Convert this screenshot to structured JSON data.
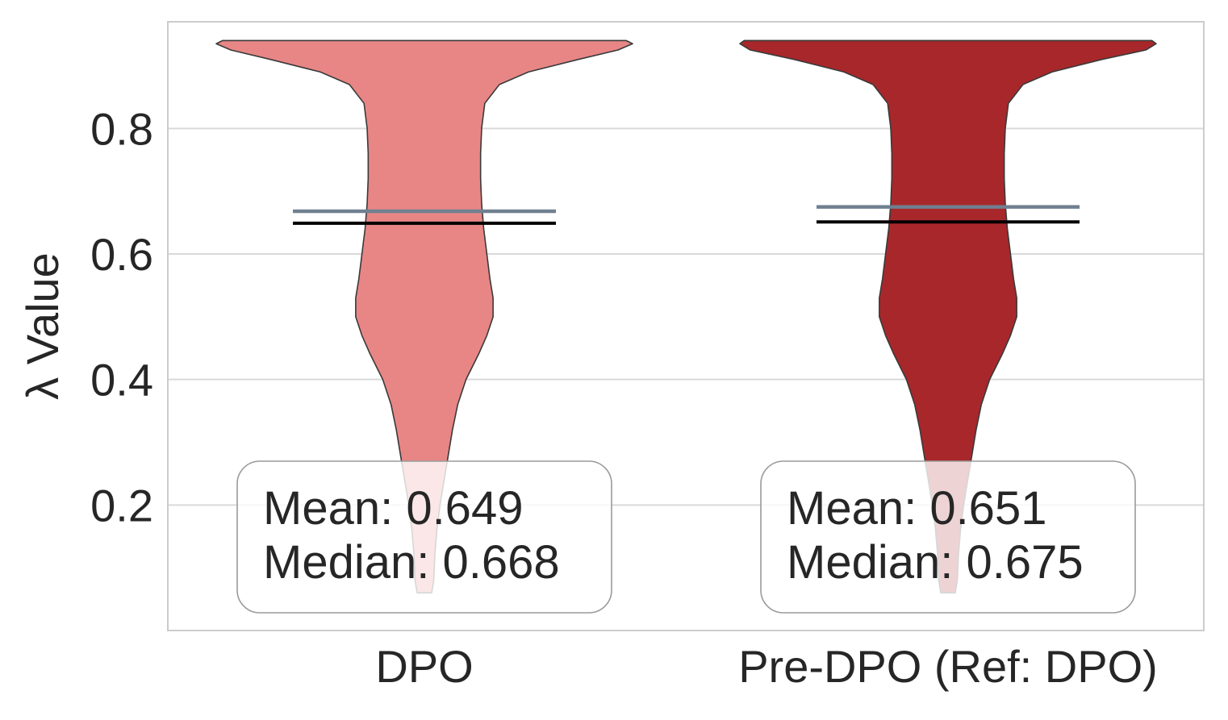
{
  "chart_data": {
    "type": "violin",
    "title": "",
    "xlabel": "",
    "ylabel": "λ Value",
    "ylim": [
      0.0,
      0.97
    ],
    "yticks": [
      0.2,
      0.4,
      0.6,
      0.8
    ],
    "ytick_labels": [
      "0.2",
      "0.4",
      "0.6",
      "0.8"
    ],
    "grid": "horizontal",
    "categories": [
      "DPO",
      "Pre-DPO (Ref: DPO)"
    ],
    "series": [
      {
        "category": "DPO",
        "color": "#E88686",
        "mean": 0.649,
        "median": 0.668,
        "stats_lines": [
          "Mean: 0.649",
          "Median: 0.668"
        ],
        "density": [
          [
            0.06,
            0.035
          ],
          [
            0.08,
            0.045
          ],
          [
            0.12,
            0.05
          ],
          [
            0.16,
            0.06
          ],
          [
            0.2,
            0.075
          ],
          [
            0.24,
            0.095
          ],
          [
            0.28,
            0.115
          ],
          [
            0.32,
            0.135
          ],
          [
            0.36,
            0.16
          ],
          [
            0.4,
            0.2
          ],
          [
            0.44,
            0.26
          ],
          [
            0.47,
            0.3
          ],
          [
            0.5,
            0.33
          ],
          [
            0.53,
            0.33
          ],
          [
            0.56,
            0.315
          ],
          [
            0.6,
            0.3
          ],
          [
            0.64,
            0.285
          ],
          [
            0.68,
            0.275
          ],
          [
            0.72,
            0.27
          ],
          [
            0.76,
            0.27
          ],
          [
            0.8,
            0.275
          ],
          [
            0.84,
            0.29
          ],
          [
            0.87,
            0.36
          ],
          [
            0.89,
            0.5
          ],
          [
            0.91,
            0.74
          ],
          [
            0.925,
            0.93
          ],
          [
            0.935,
            1.0
          ],
          [
            0.94,
            0.97
          ]
        ]
      },
      {
        "category": "Pre-DPO (Ref: DPO)",
        "color": "#A8272B",
        "mean": 0.651,
        "median": 0.675,
        "stats_lines": [
          "Mean: 0.651",
          "Median: 0.675"
        ],
        "density": [
          [
            0.06,
            0.035
          ],
          [
            0.08,
            0.045
          ],
          [
            0.12,
            0.05
          ],
          [
            0.16,
            0.06
          ],
          [
            0.2,
            0.075
          ],
          [
            0.24,
            0.095
          ],
          [
            0.28,
            0.115
          ],
          [
            0.32,
            0.135
          ],
          [
            0.36,
            0.16
          ],
          [
            0.4,
            0.2
          ],
          [
            0.44,
            0.26
          ],
          [
            0.47,
            0.3
          ],
          [
            0.5,
            0.33
          ],
          [
            0.53,
            0.33
          ],
          [
            0.56,
            0.315
          ],
          [
            0.6,
            0.3
          ],
          [
            0.64,
            0.285
          ],
          [
            0.68,
            0.275
          ],
          [
            0.72,
            0.27
          ],
          [
            0.76,
            0.27
          ],
          [
            0.8,
            0.275
          ],
          [
            0.84,
            0.29
          ],
          [
            0.87,
            0.36
          ],
          [
            0.89,
            0.5
          ],
          [
            0.91,
            0.74
          ],
          [
            0.925,
            0.95
          ],
          [
            0.935,
            1.0
          ],
          [
            0.94,
            0.98
          ]
        ]
      }
    ],
    "mean_line_color": "#000000",
    "median_line_color": "#708090",
    "grid_color": "#d9d9d9",
    "frame_color": "#cccccc"
  }
}
